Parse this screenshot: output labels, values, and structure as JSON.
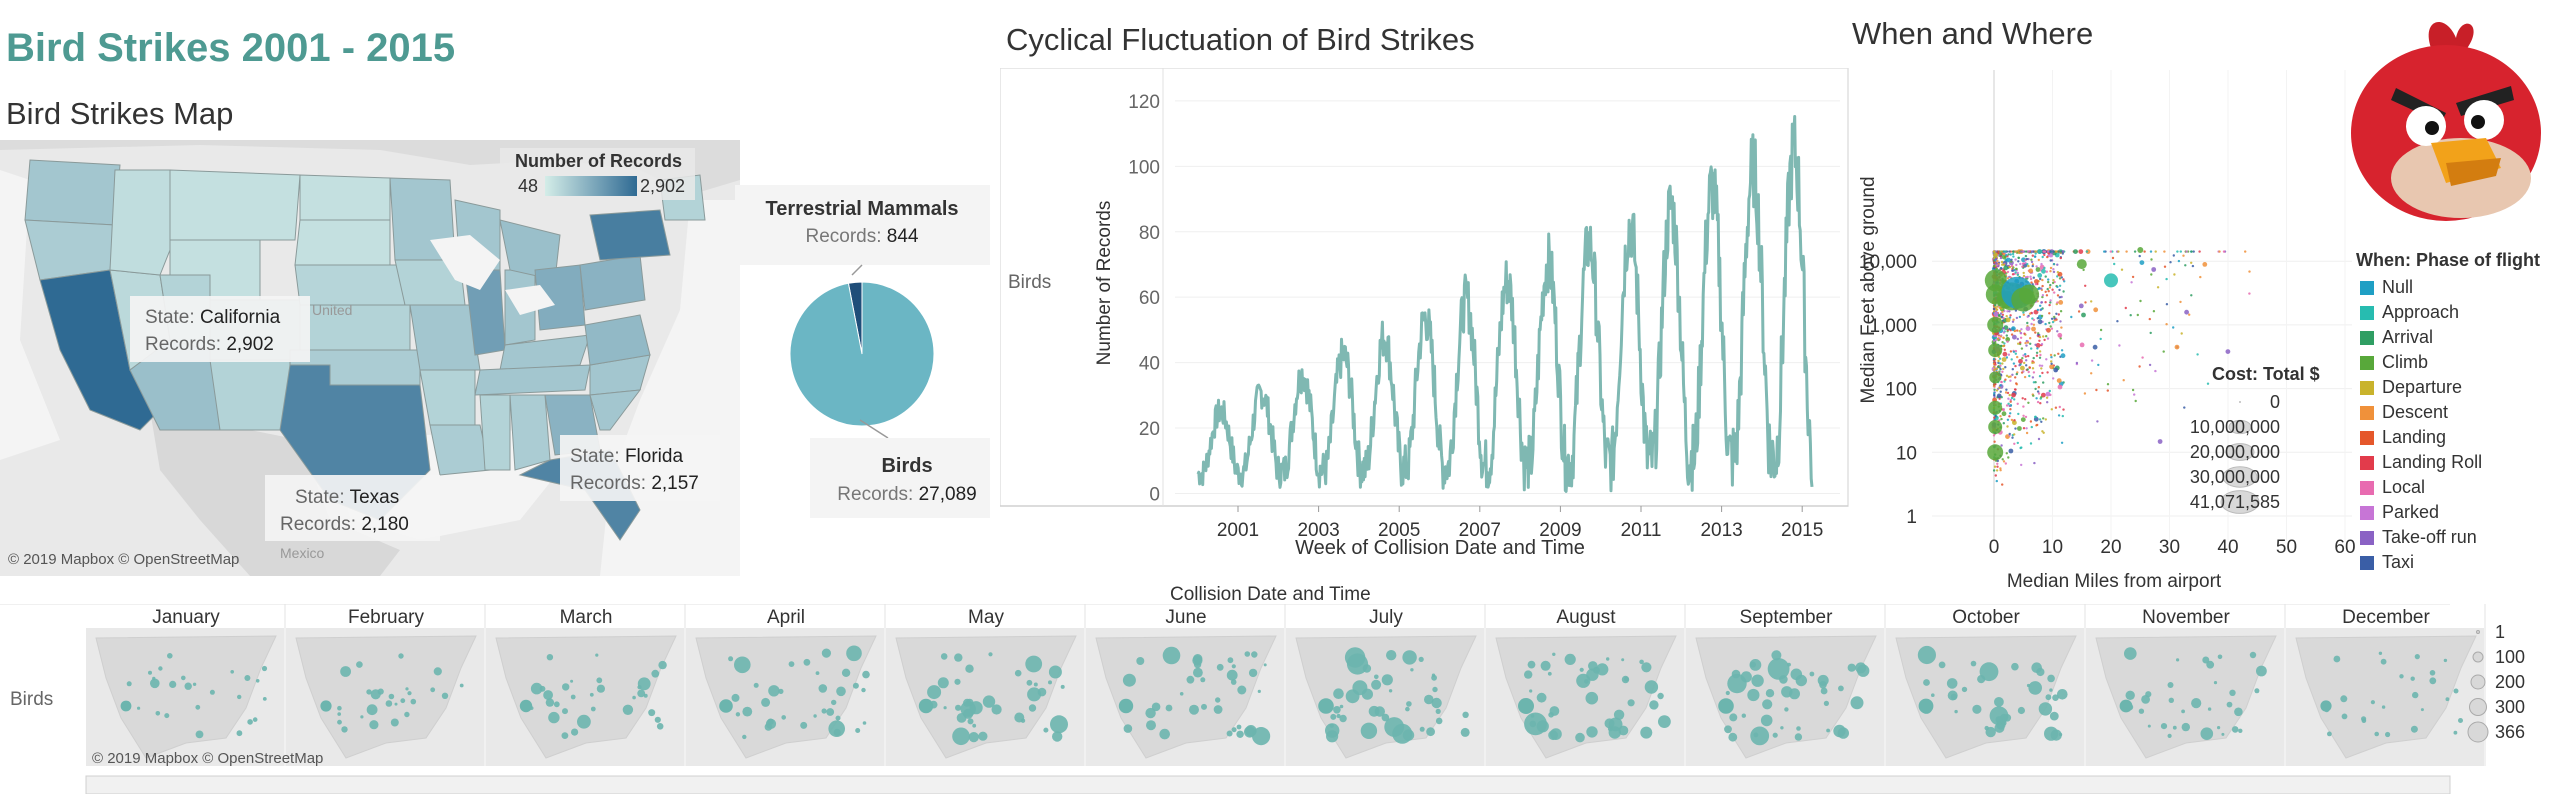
{
  "dashboard": {
    "title": "Bird Strikes 2001 - 2015"
  },
  "map": {
    "title": "Bird Strikes Map",
    "legend_title": "Number of Records",
    "legend_min": "48",
    "legend_max": "2,902",
    "attribution": "© 2019 Mapbox © OpenStreetMap",
    "faint_labels": [
      "United",
      "Mexico"
    ],
    "callouts": [
      {
        "label": "State:",
        "value": "California",
        "rec_label": "Records:",
        "records": "2,902"
      },
      {
        "label": "State:",
        "value": "Texas",
        "rec_label": "Records:",
        "records": "2,180"
      },
      {
        "label": "State:",
        "value": "Florida",
        "rec_label": "Records:",
        "records": "2,157"
      }
    ],
    "colors": {
      "low": "#d4ede8",
      "high": "#2f6a93"
    }
  },
  "pie": {
    "slices": [
      {
        "name": "Terrestrial Mammals",
        "rec_label": "Records:",
        "records": "844",
        "value": 844,
        "color": "#1f4e79"
      },
      {
        "name": "Birds",
        "rec_label": "Records:",
        "records": "27,089",
        "value": 27089,
        "color": "#6bb6c4"
      }
    ]
  },
  "line": {
    "title": "Cyclical Fluctuation of Bird Strikes",
    "row_label": "Birds",
    "ylabel": "Number of Records",
    "xlabel": "Week of Collision Date and Time",
    "yticks": [
      "0",
      "20",
      "40",
      "60",
      "80",
      "100",
      "120"
    ],
    "xticks": [
      "2001",
      "2003",
      "2005",
      "2007",
      "2009",
      "2011",
      "2013",
      "2015"
    ],
    "color": "#7fb8b2"
  },
  "scatter": {
    "title": "When and Where",
    "ylabel": "Median Feet above ground",
    "xlabel": "Median Miles from airport",
    "yticks": [
      "1",
      "10",
      "100",
      "1,000",
      "10,000"
    ],
    "xticks": [
      "0",
      "10",
      "20",
      "30",
      "40",
      "50",
      "60"
    ],
    "phase_legend_title": "When: Phase of flight",
    "phases": [
      {
        "name": "Null",
        "color": "#1f9fc4"
      },
      {
        "name": "Approach",
        "color": "#27bcb0"
      },
      {
        "name": "Arrival",
        "color": "#2f9e63"
      },
      {
        "name": "Climb",
        "color": "#58a83a"
      },
      {
        "name": "Departure",
        "color": "#c9b32c"
      },
      {
        "name": "Descent",
        "color": "#f0913a"
      },
      {
        "name": "Landing",
        "color": "#e5572b"
      },
      {
        "name": "Landing Roll",
        "color": "#e23b4b"
      },
      {
        "name": "Local",
        "color": "#e86bb0"
      },
      {
        "name": "Parked",
        "color": "#c775d6"
      },
      {
        "name": "Take-off run",
        "color": "#8a62c4"
      },
      {
        "name": "Taxi",
        "color": "#3a5ea6"
      }
    ],
    "cost_title": "Cost: Total $",
    "cost_items": [
      "0",
      "10,000,000",
      "20,000,000",
      "30,000,000",
      "41,071,585"
    ]
  },
  "bottom": {
    "title": "Collision Date and Time",
    "row_label": "Birds",
    "months": [
      "January",
      "February",
      "March",
      "April",
      "May",
      "June",
      "July",
      "August",
      "September",
      "October",
      "November",
      "December"
    ],
    "intensity": [
      0.35,
      0.4,
      0.55,
      0.7,
      0.8,
      0.8,
      0.95,
      1.0,
      0.95,
      0.85,
      0.6,
      0.4
    ],
    "attribution": "© 2019 Mapbox © OpenStreetMap",
    "size_legend": [
      "1",
      "100",
      "200",
      "300",
      "366"
    ],
    "dot_color": "#6cb5ae"
  }
}
